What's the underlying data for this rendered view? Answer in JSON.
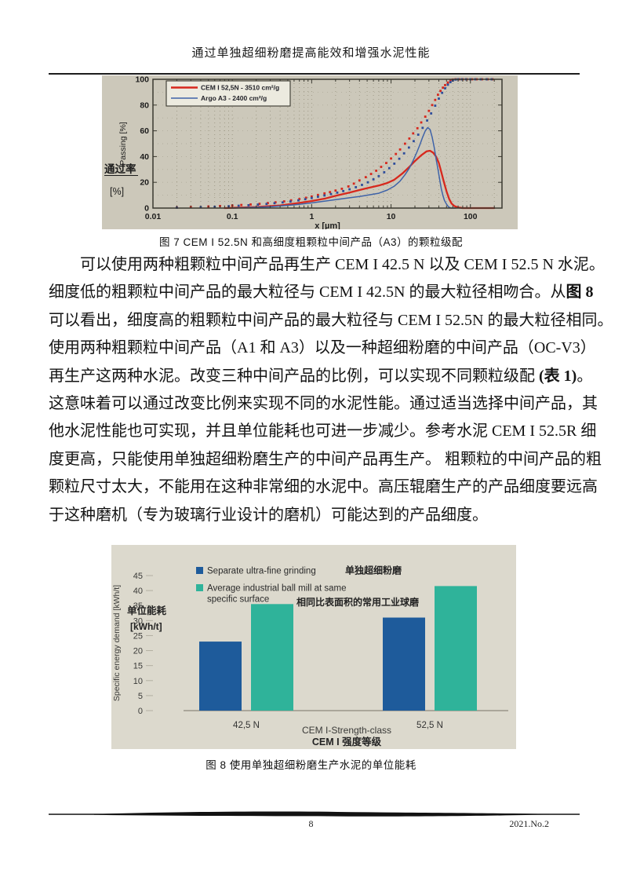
{
  "page": {
    "header_title": "通过单独超细粉磨提高能效和增强水泥性能",
    "footer_page": "8",
    "footer_issue": "2021.No.2"
  },
  "figure7_caption": "图 7 CEM I 52.5N 和高细度粗颗粒中间产品（A3）的颗粒级配",
  "figure8_caption": "图 8 使用单独超细粉磨生产水泥的单位能耗",
  "body": {
    "lines": [
      {
        "indent": true,
        "segments": [
          {
            "t": "可以使用两种粗颗粒中间产品再生产 CEM I 42.5 N 以及 CEM I 52.5 N 水泥。"
          }
        ]
      },
      {
        "segments": [
          {
            "t": "细度低的粗颗粒中间产品的最大粒径与 CEM I 42.5N 的最大粒径相吻合。从"
          },
          {
            "t": "图 8",
            "b": true
          }
        ]
      },
      {
        "segments": [
          {
            "t": "可以看出，细度高的粗颗粒中间产品的最大粒径与 CEM I 52.5N 的最大粒径相同。"
          }
        ]
      },
      {
        "segments": [
          {
            "t": "使用两种粗颗粒中间产品（A1 和 A3）以及一种超细粉磨的中间产品（OC-V3）"
          }
        ]
      },
      {
        "segments": [
          {
            "t": "再生产这两种水泥。改变三种中间产品的比例，可以实现不同颗粒级配 "
          },
          {
            "t": "(表 1)",
            "b": true
          },
          {
            "t": "。"
          }
        ]
      },
      {
        "segments": [
          {
            "t": "这意味着可以通过改变比例来实现不同的水泥性能。通过适当选择中间产品，其"
          }
        ]
      },
      {
        "segments": [
          {
            "t": "他水泥性能也可实现，并且单位能耗也可进一步减少。参考水泥 CEM I 52.5R 细"
          }
        ]
      },
      {
        "segments": [
          {
            "t": "度更高，只能使用单独超细粉磨生产的中间产品再生产。 粗颗粒的中间产品的粗"
          }
        ]
      },
      {
        "segments": [
          {
            "t": "颗粒尺寸太大，不能用在这种非常细的水泥中。高压辊磨生产的产品细度要远高"
          }
        ]
      },
      {
        "last": true,
        "segments": [
          {
            "t": "于这种磨机（专为玻璃行业设计的磨机）可能达到的产品细度。"
          }
        ]
      }
    ]
  },
  "chart_data": [
    {
      "type": "line",
      "caption": "图 7 CEM I 52.5N 和高细度粗颗粒中间产品（A3）的颗粒级配",
      "xscale": "log",
      "xlim": [
        0.01,
        250
      ],
      "ylim": [
        0,
        100
      ],
      "xticks": [
        0.01,
        0.1,
        1,
        10,
        100
      ],
      "yticks": [
        0,
        20,
        40,
        60,
        80,
        100
      ],
      "xlabel": "x [µm]",
      "ylabel": "Passing [%]",
      "ylabel_cn": "通过率",
      "ylabel_cn_unit": "[%]",
      "grid": "dotted",
      "legend_position": "top-left",
      "legend": [
        "CEM I 52,5N - 3510 cm²/g",
        "Argo A3 - 2400 cm²/g"
      ],
      "series": [
        {
          "name": "CEM I 52,5N - 3510 cm²/g (density curve)",
          "style": "line",
          "color": "#d7281d",
          "width": 2.3,
          "points": [
            [
              0.08,
              0
            ],
            [
              0.2,
              0.8
            ],
            [
              0.4,
              2
            ],
            [
              0.7,
              4
            ],
            [
              1,
              5.5
            ],
            [
              1.5,
              7.5
            ],
            [
              2,
              9.5
            ],
            [
              3,
              12
            ],
            [
              4,
              14
            ],
            [
              5,
              15.5
            ],
            [
              7,
              17.5
            ],
            [
              9,
              19.5
            ],
            [
              11,
              22
            ],
            [
              14,
              27
            ],
            [
              17,
              32
            ],
            [
              20,
              36.5
            ],
            [
              24,
              41
            ],
            [
              28,
              44
            ],
            [
              31,
              44.5
            ],
            [
              34,
              43
            ],
            [
              37,
              40
            ],
            [
              40,
              35
            ],
            [
              43,
              28
            ],
            [
              46,
              21
            ],
            [
              50,
              13
            ],
            [
              54,
              7
            ],
            [
              58,
              3.5
            ],
            [
              63,
              1.5
            ],
            [
              70,
              0.5
            ],
            [
              80,
              0
            ],
            [
              200,
              0
            ]
          ]
        },
        {
          "name": "Argo A3 - 2400 cm²/g (density curve)",
          "style": "line",
          "color": "#3f63a8",
          "width": 1.5,
          "points": [
            [
              0.1,
              0
            ],
            [
              0.3,
              1
            ],
            [
              0.6,
              2.5
            ],
            [
              1,
              4
            ],
            [
              1.5,
              5.5
            ],
            [
              2,
              6.5
            ],
            [
              3,
              8
            ],
            [
              4,
              9
            ],
            [
              5,
              10
            ],
            [
              7,
              11.5
            ],
            [
              9,
              14
            ],
            [
              11,
              17
            ],
            [
              13,
              21
            ],
            [
              15,
              26
            ],
            [
              17,
              31
            ],
            [
              19,
              37
            ],
            [
              21,
              43
            ],
            [
              23,
              49
            ],
            [
              25,
              55
            ],
            [
              27,
              60
            ],
            [
              29,
              62.5
            ],
            [
              31,
              61
            ],
            [
              33,
              55
            ],
            [
              35,
              47
            ],
            [
              37,
              38
            ],
            [
              39,
              30
            ],
            [
              41,
              22
            ],
            [
              43,
              15
            ],
            [
              45,
              10
            ],
            [
              47,
              6
            ],
            [
              50,
              3
            ],
            [
              53,
              1
            ],
            [
              57,
              0
            ],
            [
              65,
              0
            ]
          ]
        },
        {
          "name": "CEM I 52,5N - 3510 cm²/g (cumulative passing)",
          "style": "markers",
          "color": "#d7281d",
          "points": [
            [
              0.02,
              0.5
            ],
            [
              0.03,
              0.8
            ],
            [
              0.05,
              1.2
            ],
            [
              0.07,
              1.6
            ],
            [
              0.1,
              2
            ],
            [
              0.13,
              2.4
            ],
            [
              0.17,
              2.8
            ],
            [
              0.22,
              3.3
            ],
            [
              0.28,
              3.9
            ],
            [
              0.35,
              4.5
            ],
            [
              0.45,
              5.2
            ],
            [
              0.55,
              6
            ],
            [
              0.7,
              7
            ],
            [
              0.85,
              8
            ],
            [
              1,
              9
            ],
            [
              1.2,
              10.2
            ],
            [
              1.45,
              11.4
            ],
            [
              1.7,
              12.4
            ],
            [
              2,
              13.6
            ],
            [
              2.4,
              15
            ],
            [
              2.9,
              16.8
            ],
            [
              3.4,
              19
            ],
            [
              4,
              21.5
            ],
            [
              4.8,
              24
            ],
            [
              5.6,
              26.5
            ],
            [
              6.5,
              29
            ],
            [
              7.5,
              32
            ],
            [
              8.7,
              35
            ],
            [
              10,
              38.5
            ],
            [
              11.5,
              42
            ],
            [
              13,
              45.5
            ],
            [
              15,
              50
            ],
            [
              17,
              54
            ],
            [
              19,
              58
            ],
            [
              21.5,
              62
            ],
            [
              24,
              66.5
            ],
            [
              27,
              71
            ],
            [
              30,
              75.5
            ],
            [
              33,
              80
            ],
            [
              36,
              84
            ],
            [
              39,
              88
            ],
            [
              42,
              91
            ],
            [
              45,
              93.5
            ],
            [
              48,
              95.5
            ],
            [
              52,
              97.5
            ],
            [
              56,
              99
            ],
            [
              60,
              99.8
            ],
            [
              65,
              100
            ],
            [
              72,
              100
            ],
            [
              80,
              100
            ],
            [
              90,
              100
            ],
            [
              105,
              100
            ],
            [
              120,
              100
            ],
            [
              140,
              100
            ],
            [
              165,
              100
            ],
            [
              190,
              100
            ]
          ]
        },
        {
          "name": "Argo A3 - 2400 cm²/g (cumulative passing)",
          "style": "markers",
          "color": "#2e4d9b",
          "points": [
            [
              0.02,
              0.3
            ],
            [
              0.04,
              0.7
            ],
            [
              0.06,
              1
            ],
            [
              0.09,
              1.4
            ],
            [
              0.12,
              1.8
            ],
            [
              0.16,
              2.2
            ],
            [
              0.21,
              2.7
            ],
            [
              0.27,
              3.2
            ],
            [
              0.34,
              3.8
            ],
            [
              0.43,
              4.4
            ],
            [
              0.54,
              5.1
            ],
            [
              0.68,
              6
            ],
            [
              0.83,
              6.9
            ],
            [
              1,
              7.8
            ],
            [
              1.2,
              8.8
            ],
            [
              1.45,
              9.8
            ],
            [
              1.75,
              10.9
            ],
            [
              2.1,
              12
            ],
            [
              2.5,
              13.2
            ],
            [
              3,
              14.6
            ],
            [
              3.6,
              16.2
            ],
            [
              4.3,
              18
            ],
            [
              5.1,
              20
            ],
            [
              6,
              22.3
            ],
            [
              7,
              24.8
            ],
            [
              8.2,
              27.8
            ],
            [
              9.5,
              31
            ],
            [
              11,
              34.5
            ],
            [
              12.7,
              38.3
            ],
            [
              14.6,
              42.5
            ],
            [
              16.8,
              47
            ],
            [
              19.3,
              52
            ],
            [
              22,
              57
            ],
            [
              25,
              62.3
            ],
            [
              28.5,
              68
            ],
            [
              32,
              73.5
            ],
            [
              36,
              79.5
            ],
            [
              40,
              85
            ],
            [
              44,
              89.5
            ],
            [
              48,
              93
            ],
            [
              52,
              95.8
            ],
            [
              56,
              97.8
            ],
            [
              60,
              99
            ],
            [
              65,
              99.8
            ],
            [
              70,
              100
            ],
            [
              78,
              100
            ],
            [
              88,
              100
            ],
            [
              100,
              100
            ],
            [
              115,
              100
            ],
            [
              135,
              100
            ],
            [
              160,
              100
            ],
            [
              185,
              100
            ]
          ]
        }
      ]
    },
    {
      "type": "bar",
      "caption": "图 8 使用单独超细粉磨生产水泥的单位能耗",
      "categories": [
        "42,5 N",
        "52,5 N"
      ],
      "series": [
        {
          "name": "Separate ultra-fine grinding",
          "name_cn": "单独超细粉磨",
          "color": "#1e5b9b",
          "values": [
            23,
            31
          ]
        },
        {
          "name": "Average industrial ball mill at same specific surface",
          "name_lines": [
            "Average industrial ball mill at same",
            "specific surface"
          ],
          "name_cn": "相同比表面积的常用工业球磨",
          "color": "#2fb39a",
          "values": [
            35.5,
            41.5
          ]
        }
      ],
      "xlabel": "CEM I-Strength-class",
      "xlabel_cn": "CEM I 强度等级",
      "ylabel": "Specific energy demand [kWh/t]",
      "ylabel_cn": "单位能耗",
      "ylabel_cn_unit": "[kWh/t]",
      "ylim": [
        0,
        45
      ],
      "ytick_step": 5,
      "grid": false,
      "legend_position": "top-left"
    }
  ]
}
